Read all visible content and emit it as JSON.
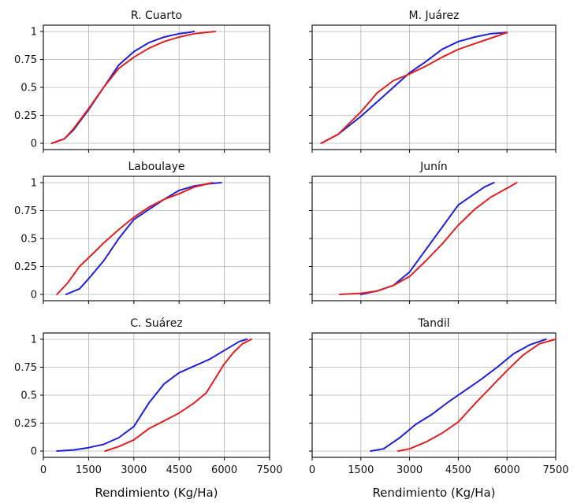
{
  "chart_data": [
    {
      "type": "line",
      "title": "R. Cuarto",
      "xlim": [
        0,
        7500
      ],
      "ylim": [
        0,
        1
      ],
      "xticks": [],
      "yticks": [
        "0",
        "0.25",
        "0.5",
        "0.75",
        "1"
      ],
      "xlabel": "",
      "grid": true,
      "series": [
        {
          "color": "#1f1fd6",
          "x": [
            280,
            700,
            1000,
            1500,
            2000,
            2500,
            3000,
            3500,
            4000,
            4500,
            4800,
            5000
          ],
          "y": [
            0,
            0.04,
            0.12,
            0.3,
            0.5,
            0.7,
            0.82,
            0.9,
            0.95,
            0.98,
            0.99,
            1.0
          ]
        },
        {
          "color": "#e02020",
          "x": [
            280,
            700,
            1000,
            1500,
            2000,
            2500,
            3000,
            3500,
            4000,
            4500,
            5000,
            5700
          ],
          "y": [
            0,
            0.04,
            0.13,
            0.31,
            0.5,
            0.67,
            0.77,
            0.85,
            0.91,
            0.95,
            0.98,
            1.0
          ]
        }
      ]
    },
    {
      "type": "line",
      "title": "M. Juárez",
      "xlim": [
        0,
        7500
      ],
      "ylim": [
        0,
        1
      ],
      "xticks": [],
      "yticks": [],
      "xlabel": "",
      "grid": true,
      "series": [
        {
          "color": "#1f1fd6",
          "x": [
            280,
            800,
            1500,
            2000,
            2500,
            3000,
            3500,
            4000,
            4500,
            5000,
            5500,
            6000
          ],
          "y": [
            0,
            0.08,
            0.24,
            0.37,
            0.5,
            0.63,
            0.73,
            0.84,
            0.91,
            0.95,
            0.98,
            0.99
          ]
        },
        {
          "color": "#e02020",
          "x": [
            280,
            800,
            1500,
            2000,
            2500,
            3000,
            3500,
            4000,
            4500,
            5000,
            5500,
            6000
          ],
          "y": [
            0,
            0.08,
            0.28,
            0.45,
            0.56,
            0.62,
            0.69,
            0.77,
            0.84,
            0.89,
            0.94,
            0.99
          ]
        }
      ]
    },
    {
      "type": "line",
      "title": "Laboulaye",
      "xlim": [
        0,
        7500
      ],
      "ylim": [
        0,
        1
      ],
      "xticks": [],
      "yticks": [
        "0",
        "0.25",
        "0.5",
        "0.75",
        "1"
      ],
      "xlabel": "",
      "grid": true,
      "series": [
        {
          "color": "#1f1fd6",
          "x": [
            750,
            1200,
            1500,
            2000,
            2500,
            3000,
            3500,
            4000,
            4500,
            5000,
            5500,
            5900
          ],
          "y": [
            0,
            0.05,
            0.14,
            0.3,
            0.5,
            0.67,
            0.76,
            0.85,
            0.93,
            0.97,
            0.99,
            1.0
          ]
        },
        {
          "color": "#e02020",
          "x": [
            450,
            800,
            1200,
            1700,
            2000,
            2500,
            3000,
            3500,
            4000,
            4500,
            5000,
            5600
          ],
          "y": [
            0,
            0.1,
            0.25,
            0.38,
            0.46,
            0.58,
            0.69,
            0.78,
            0.85,
            0.9,
            0.96,
            1.0
          ]
        }
      ]
    },
    {
      "type": "line",
      "title": "Junín",
      "xlim": [
        0,
        7500
      ],
      "ylim": [
        0,
        1
      ],
      "xticks": [],
      "yticks": [],
      "xlabel": "",
      "grid": true,
      "series": [
        {
          "color": "#1f1fd6",
          "x": [
            1500,
            2000,
            2500,
            3000,
            3500,
            4000,
            4500,
            5000,
            5300,
            5600
          ],
          "y": [
            0,
            0.03,
            0.08,
            0.2,
            0.4,
            0.6,
            0.8,
            0.9,
            0.96,
            1.0
          ]
        },
        {
          "color": "#e02020",
          "x": [
            850,
            1500,
            2000,
            2500,
            3000,
            3500,
            4000,
            4500,
            5000,
            5500,
            6000,
            6300
          ],
          "y": [
            0,
            0.01,
            0.03,
            0.08,
            0.16,
            0.3,
            0.45,
            0.62,
            0.76,
            0.87,
            0.95,
            1.0
          ]
        }
      ]
    },
    {
      "type": "line",
      "title": "C. Suárez",
      "xlim": [
        0,
        7500
      ],
      "ylim": [
        0,
        1
      ],
      "xticks": [
        "0",
        "1500",
        "3000",
        "4500",
        "6000",
        "7500"
      ],
      "yticks": [
        "0",
        "0.25",
        "0.5",
        "0.75",
        "1"
      ],
      "xlabel": "Rendimiento (Kg/Ha)",
      "grid": true,
      "series": [
        {
          "color": "#1f1fd6",
          "x": [
            450,
            1000,
            1500,
            2000,
            2500,
            3000,
            3500,
            4000,
            4500,
            5000,
            5500,
            6000,
            6500,
            6750
          ],
          "y": [
            0,
            0.01,
            0.03,
            0.06,
            0.12,
            0.22,
            0.43,
            0.6,
            0.7,
            0.76,
            0.82,
            0.9,
            0.98,
            1.0
          ]
        },
        {
          "color": "#e02020",
          "x": [
            2050,
            2500,
            3000,
            3500,
            4000,
            4500,
            5000,
            5400,
            5700,
            6000,
            6300,
            6600,
            6900
          ],
          "y": [
            0,
            0.04,
            0.1,
            0.2,
            0.27,
            0.34,
            0.43,
            0.52,
            0.65,
            0.78,
            0.88,
            0.96,
            1.0
          ]
        }
      ]
    },
    {
      "type": "line",
      "title": "Tandil",
      "xlim": [
        0,
        7500
      ],
      "ylim": [
        0,
        1
      ],
      "xticks": [
        "0",
        "1500",
        "3000",
        "4500",
        "6000",
        "7500"
      ],
      "yticks": [],
      "xlabel": "Rendimiento (Kg/Ha)",
      "grid": true,
      "series": [
        {
          "color": "#1f1fd6",
          "x": [
            1800,
            2200,
            2700,
            3200,
            3700,
            4200,
            4700,
            5200,
            5700,
            6200,
            6700,
            7200
          ],
          "y": [
            0,
            0.02,
            0.12,
            0.24,
            0.33,
            0.44,
            0.54,
            0.64,
            0.75,
            0.87,
            0.95,
            1.0
          ]
        },
        {
          "color": "#e02020",
          "x": [
            2650,
            3000,
            3500,
            4000,
            4500,
            5000,
            5500,
            6000,
            6500,
            7000,
            7500
          ],
          "y": [
            0,
            0.02,
            0.08,
            0.16,
            0.26,
            0.42,
            0.57,
            0.72,
            0.86,
            0.96,
            1.0
          ]
        }
      ]
    }
  ]
}
